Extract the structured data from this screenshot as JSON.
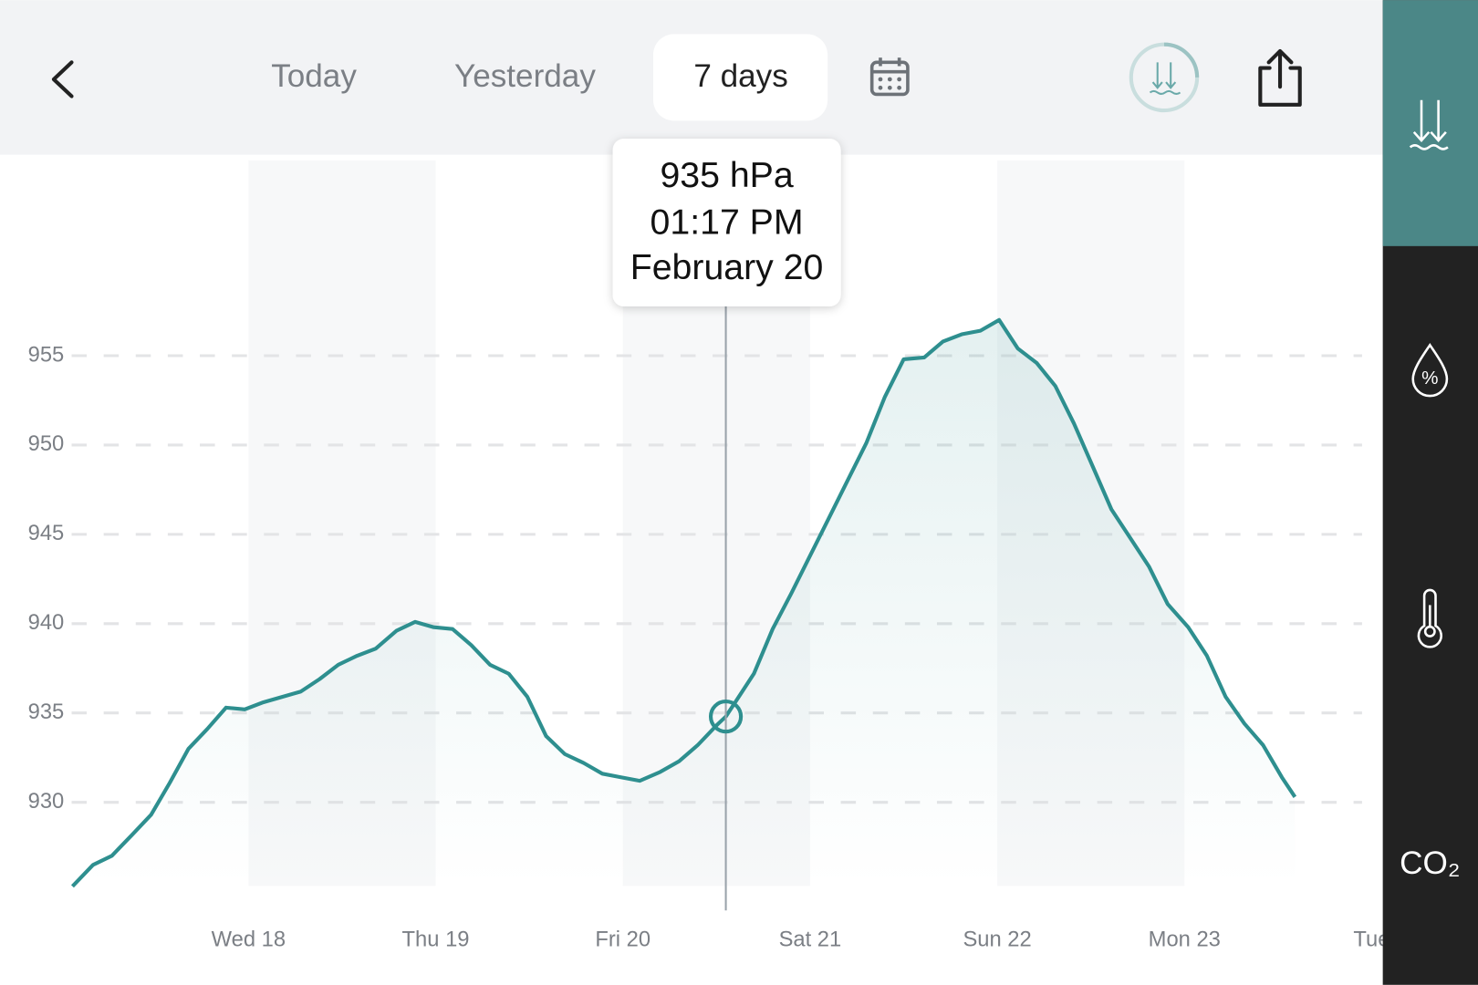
{
  "header": {
    "tabs": [
      "Today",
      "Yesterday",
      "7 days"
    ]
  },
  "tooltip": {
    "value": "935 hPa",
    "time": "01:17 PM",
    "date": "February 20"
  },
  "sidebar": {
    "humidity": "%",
    "co2": "CO₂"
  },
  "chart_data": {
    "type": "line",
    "color": "#2e8f8f",
    "grid": true,
    "x": [
      17.06,
      17.17,
      17.27,
      17.38,
      17.48,
      17.58,
      17.68,
      17.78,
      17.88,
      17.98,
      18.08,
      18.18,
      18.28,
      18.38,
      18.48,
      18.58,
      18.68,
      18.79,
      18.89,
      18.99,
      19.09,
      19.19,
      19.29,
      19.39,
      19.49,
      19.59,
      19.69,
      19.79,
      19.89,
      19.99,
      20.09,
      20.2,
      20.3,
      20.4,
      20.5,
      20.55,
      20.6,
      20.7,
      20.8,
      20.9,
      21.0,
      21.1,
      21.2,
      21.3,
      21.4,
      21.5,
      21.61,
      21.71,
      21.81,
      21.91,
      22.01,
      22.11,
      22.21,
      22.31,
      22.41,
      22.51,
      22.61,
      22.71,
      22.81,
      22.91,
      23.02,
      23.12,
      23.22,
      23.32,
      23.42,
      23.52,
      23.59
    ],
    "values": [
      925.3,
      926.5,
      927.0,
      928.2,
      929.3,
      931.1,
      933.0,
      934.1,
      935.3,
      935.2,
      935.6,
      935.9,
      936.2,
      936.9,
      937.7,
      938.2,
      938.6,
      939.6,
      940.1,
      939.8,
      939.7,
      938.8,
      937.7,
      937.2,
      935.9,
      933.7,
      932.7,
      932.2,
      931.6,
      931.4,
      931.2,
      931.7,
      932.3,
      933.2,
      934.3,
      934.8,
      935.6,
      937.2,
      939.7,
      941.7,
      943.8,
      945.9,
      948.0,
      950.1,
      952.7,
      954.8,
      954.9,
      955.8,
      956.2,
      956.4,
      957.0,
      955.4,
      954.6,
      953.3,
      951.2,
      948.8,
      946.4,
      944.8,
      943.2,
      941.1,
      939.8,
      938.2,
      935.9,
      934.4,
      933.2,
      931.4,
      930.3
    ],
    "xlim": [
      17.0,
      24.0
    ],
    "xticks": [
      {
        "value": 18,
        "label": "Wed 18"
      },
      {
        "value": 19,
        "label": "Thu 19"
      },
      {
        "value": 20,
        "label": "Fri 20"
      },
      {
        "value": 21,
        "label": "Sat 21"
      },
      {
        "value": 22,
        "label": "Sun 22"
      },
      {
        "value": 23,
        "label": "Mon 23"
      },
      {
        "value": 24,
        "label": "Tue"
      }
    ],
    "ylim": [
      924,
      966.2
    ],
    "yticks": [
      930,
      935,
      940,
      945,
      950,
      955
    ],
    "cursor_index": 35
  }
}
